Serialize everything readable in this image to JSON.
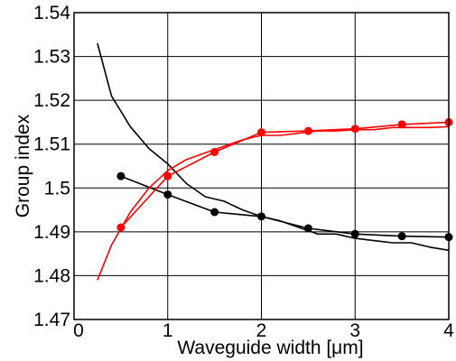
{
  "chart_data": {
    "type": "line",
    "title": "",
    "xlabel": "Waveguide width [μm]",
    "ylabel": "Group index",
    "xlim": [
      0,
      4
    ],
    "ylim": [
      1.47,
      1.54
    ],
    "x_ticks": [
      "0",
      "1",
      "2",
      "3",
      "4"
    ],
    "y_ticks": [
      "1.47",
      "1.48",
      "1.49",
      "1.5",
      "1.51",
      "1.52",
      "1.53",
      "1.54"
    ],
    "grid": true,
    "legend": "none",
    "series": [
      {
        "color": "#000000",
        "marker": "none",
        "x": [
          0.25,
          0.4,
          0.6,
          0.8,
          1.0,
          1.2,
          1.4,
          1.6,
          1.8,
          2.0,
          2.2,
          2.4,
          2.6,
          2.8,
          3.0,
          3.2,
          3.4,
          3.6,
          3.8,
          4.0
        ],
        "y": [
          1.533,
          1.521,
          1.514,
          1.509,
          1.5055,
          1.501,
          1.498,
          1.497,
          1.495,
          1.4935,
          1.4925,
          1.491,
          1.4895,
          1.4895,
          1.4885,
          1.488,
          1.4875,
          1.4875,
          1.4865,
          1.4858
        ]
      },
      {
        "color": "#000000",
        "marker": "circle",
        "x": [
          0.5,
          1.0,
          1.5,
          2.0,
          2.5,
          3.0,
          3.5,
          4.0
        ],
        "y": [
          1.5027,
          1.4985,
          1.4945,
          1.4935,
          1.4908,
          1.4895,
          1.489,
          1.4888
        ]
      },
      {
        "color": "#ff0000",
        "marker": "none",
        "x": [
          0.25,
          0.4,
          0.6,
          0.8,
          1.0,
          1.2,
          1.4,
          1.6,
          1.8,
          2.0,
          2.2,
          2.4,
          2.6,
          2.8,
          3.0,
          3.2,
          3.4,
          3.6,
          3.8,
          4.0
        ],
        "y": [
          1.479,
          1.487,
          1.4945,
          1.5,
          1.504,
          1.5065,
          1.508,
          1.5095,
          1.511,
          1.512,
          1.512,
          1.5125,
          1.513,
          1.513,
          1.5133,
          1.5133,
          1.5138,
          1.5138,
          1.5138,
          1.514
        ]
      },
      {
        "color": "#ff0000",
        "marker": "circle",
        "x": [
          0.5,
          1.0,
          1.5,
          2.0,
          2.5,
          3.0,
          3.5,
          4.0
        ],
        "y": [
          1.491,
          1.5027,
          1.5082,
          1.5127,
          1.513,
          1.5135,
          1.5145,
          1.515
        ]
      }
    ]
  }
}
